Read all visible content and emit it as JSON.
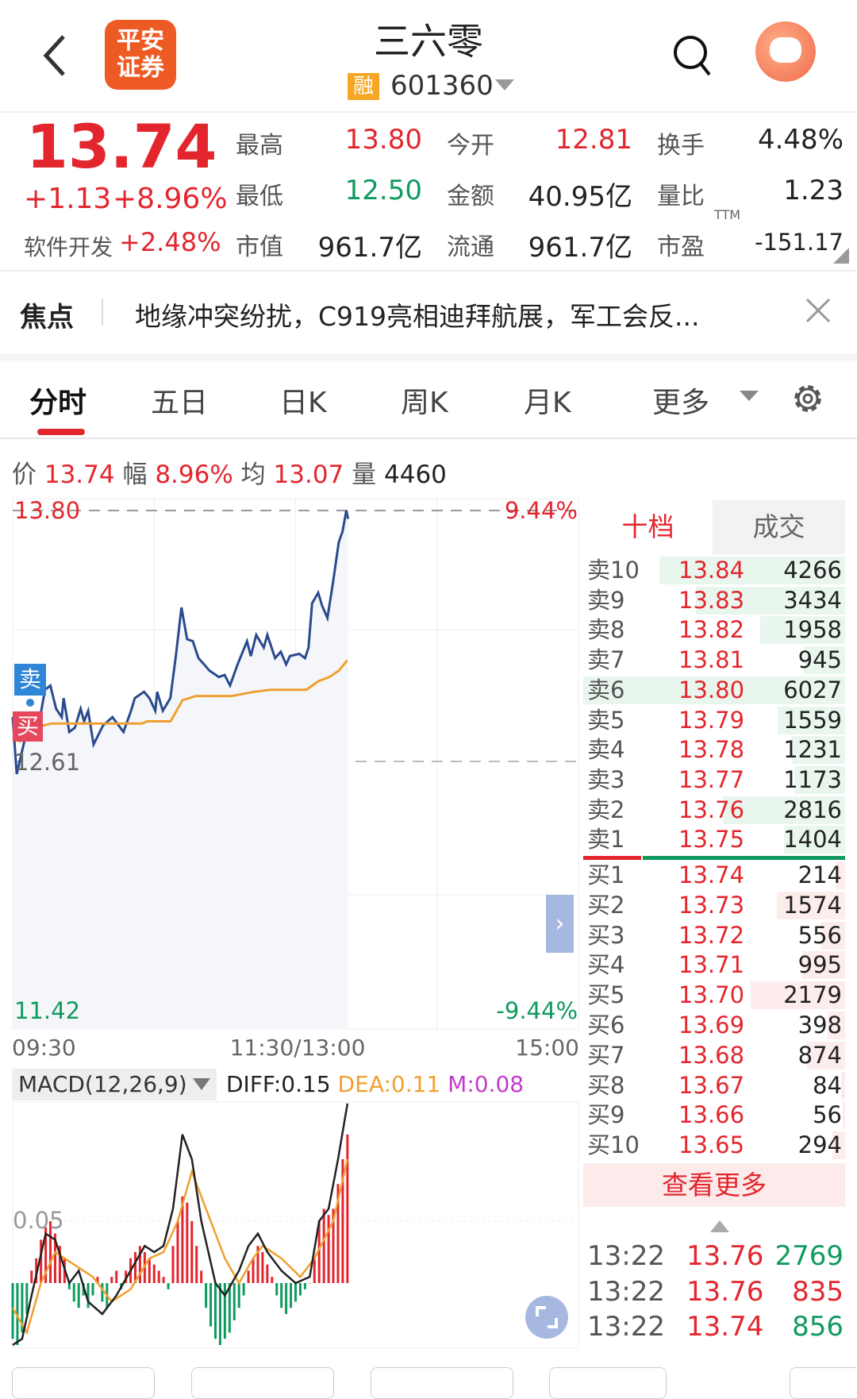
{
  "header": {
    "title": "三六零",
    "badge": "融",
    "code": "601360",
    "logo_text": "平安证券"
  },
  "quote": {
    "price": "13.74",
    "change": "+1.13",
    "change_pct": "+8.96%",
    "sector": "软件开发",
    "sector_pct": "+2.48%",
    "stats": [
      {
        "label": "最高",
        "value": "13.80",
        "color": "red"
      },
      {
        "label": "今开",
        "value": "12.81",
        "color": "red"
      },
      {
        "label": "换手",
        "value": "4.48%",
        "color": "black"
      },
      {
        "label": "最低",
        "value": "12.50",
        "color": "green"
      },
      {
        "label": "金额",
        "value": "40.95亿",
        "color": "black"
      },
      {
        "label": "量比",
        "value": "1.23",
        "color": "black"
      },
      {
        "label": "市值",
        "value": "961.7亿",
        "color": "black"
      },
      {
        "label": "流通",
        "value": "961.7亿",
        "color": "black"
      },
      {
        "label": "市盈",
        "value": "-151.17",
        "color": "black"
      }
    ],
    "pe_sup": "TTM"
  },
  "focus": {
    "label": "焦点",
    "text": "地缘冲突纷扰，C919亮相迪拜航展，军工会反..."
  },
  "tabs": [
    "分时",
    "五日",
    "日K",
    "周K",
    "月K",
    "更多"
  ],
  "info": {
    "price_label": "价",
    "price": "13.74",
    "amp_label": "幅",
    "amp": "8.96%",
    "avg_label": "均",
    "avg": "13.07",
    "vol_label": "量",
    "vol": "4460"
  },
  "chart_data": {
    "type": "line",
    "y_top": "13.80",
    "y_mid": "12.61",
    "y_bottom": "11.42",
    "pct_top": "9.44%",
    "pct_bottom": "-9.44%",
    "ylim": [
      11.42,
      13.8
    ],
    "prev_close": 12.61,
    "x_labels": [
      "09:30",
      "11:30/13:00",
      "15:00"
    ],
    "x_range_minutes": [
      0,
      240
    ],
    "price": [
      [
        0,
        12.82
      ],
      [
        1.7,
        12.55
      ],
      [
        7.3,
        12.82
      ],
      [
        9.7,
        12.76
      ],
      [
        11.3,
        12.8
      ],
      [
        13.7,
        12.95
      ],
      [
        16,
        12.97
      ],
      [
        18.4,
        12.86
      ],
      [
        20.8,
        12.82
      ],
      [
        21.6,
        12.91
      ],
      [
        24,
        12.75
      ],
      [
        26.4,
        12.77
      ],
      [
        28.8,
        12.86
      ],
      [
        30.3,
        12.8
      ],
      [
        32,
        12.85
      ],
      [
        34.3,
        12.69
      ],
      [
        38.3,
        12.78
      ],
      [
        42.3,
        12.82
      ],
      [
        47,
        12.75
      ],
      [
        50.2,
        12.85
      ],
      [
        51.8,
        12.91
      ],
      [
        55.7,
        12.94
      ],
      [
        58,
        12.91
      ],
      [
        60.5,
        12.85
      ],
      [
        61.3,
        12.94
      ],
      [
        63.7,
        12.85
      ],
      [
        66.9,
        12.91
      ],
      [
        69.2,
        13.11
      ],
      [
        71.6,
        13.34
      ],
      [
        74,
        13.19
      ],
      [
        76.4,
        13.18
      ],
      [
        78.8,
        13.1
      ],
      [
        81.2,
        13.07
      ],
      [
        83.5,
        13.04
      ],
      [
        87.5,
        13.01
      ],
      [
        89.9,
        13.02
      ],
      [
        92.2,
        12.97
      ],
      [
        95.4,
        13.07
      ],
      [
        99.4,
        13.18
      ],
      [
        101,
        13.11
      ],
      [
        103.3,
        13.21
      ],
      [
        106.5,
        13.15
      ],
      [
        108,
        13.21
      ],
      [
        111.3,
        13.1
      ],
      [
        113.7,
        13.13
      ],
      [
        116,
        13.07
      ],
      [
        117.6,
        13.11
      ],
      [
        121.6,
        13.12
      ],
      [
        124,
        13.1
      ],
      [
        125.5,
        13.15
      ],
      [
        127,
        13.36
      ],
      [
        129.6,
        13.41
      ],
      [
        131.2,
        13.35
      ],
      [
        133.5,
        13.29
      ],
      [
        135.9,
        13.46
      ],
      [
        138.3,
        13.65
      ],
      [
        139.9,
        13.7
      ],
      [
        141.5,
        13.8
      ],
      [
        142.3,
        13.76
      ]
    ],
    "average": [
      [
        3,
        12.7
      ],
      [
        6,
        12.76
      ],
      [
        16.5,
        12.79
      ],
      [
        55,
        12.79
      ],
      [
        57,
        12.8
      ],
      [
        67,
        12.8
      ],
      [
        72,
        12.9
      ],
      [
        77.6,
        12.92
      ],
      [
        92.9,
        12.92
      ],
      [
        102.4,
        12.94
      ],
      [
        109.5,
        12.95
      ],
      [
        124.6,
        12.95
      ],
      [
        129.6,
        12.99
      ],
      [
        134.3,
        13.01
      ],
      [
        138.3,
        13.04
      ],
      [
        141.9,
        13.09
      ]
    ],
    "series": [
      {
        "name": "价",
        "color": "#2a4a8f"
      },
      {
        "name": "均",
        "color": "#f0a030"
      }
    ],
    "trade_marks": [
      "卖",
      "买"
    ]
  },
  "macd": {
    "title": "MACD(12,26,9)",
    "diff": "DIFF:0.15",
    "dea": "DEA:0.11",
    "m": "M:0.08",
    "axis_label": "0.05",
    "histogram": [
      -0.045,
      -0.05,
      -0.04,
      -0.025,
      0.01,
      0.02,
      0.035,
      0.045,
      0.05,
      0.04,
      0.03,
      0.02,
      -0.005,
      -0.015,
      -0.02,
      -0.01,
      -0.02,
      -0.01,
      0.005,
      -0.015,
      -0.02,
      0.005,
      0.01,
      -0.005,
      0.01,
      0.02,
      0.025,
      0.03,
      0.025,
      0.02,
      0.015,
      0.01,
      0.005,
      -0.005,
      0.03,
      0.05,
      0.07,
      0.065,
      0.05,
      0.03,
      0.01,
      -0.02,
      -0.035,
      -0.045,
      -0.05,
      -0.045,
      -0.04,
      -0.03,
      -0.02,
      -0.01,
      0.01,
      0.02,
      0.03,
      0.025,
      0.015,
      0.005,
      -0.01,
      -0.02,
      -0.025,
      -0.02,
      -0.015,
      -0.01,
      -0.005,
      0.0,
      0.02,
      0.05,
      0.06,
      0.055,
      0.06,
      0.08,
      0.1,
      0.12
    ],
    "diff_line": [
      [
        0,
        -0.05
      ],
      [
        4,
        -0.045
      ],
      [
        8,
        -0.01
      ],
      [
        14,
        0.04
      ],
      [
        18,
        0.035
      ],
      [
        24,
        0.0
      ],
      [
        28,
        0.01
      ],
      [
        32,
        -0.015
      ],
      [
        38,
        -0.025
      ],
      [
        44,
        -0.01
      ],
      [
        50,
        0.01
      ],
      [
        56,
        0.03
      ],
      [
        60,
        0.025
      ],
      [
        64,
        0.03
      ],
      [
        68,
        0.06
      ],
      [
        72,
        0.12
      ],
      [
        76,
        0.1
      ],
      [
        80,
        0.05
      ],
      [
        86,
        0.0
      ],
      [
        90,
        -0.01
      ],
      [
        96,
        0.01
      ],
      [
        100,
        0.03
      ],
      [
        104,
        0.04
      ],
      [
        108,
        0.025
      ],
      [
        114,
        0.01
      ],
      [
        120,
        0.0
      ],
      [
        126,
        0.005
      ],
      [
        130,
        0.05
      ],
      [
        134,
        0.06
      ],
      [
        138,
        0.1
      ],
      [
        142,
        0.145
      ]
    ],
    "dea_line": [
      [
        0,
        -0.02
      ],
      [
        6,
        -0.04
      ],
      [
        12,
        0.0
      ],
      [
        18,
        0.025
      ],
      [
        26,
        0.015
      ],
      [
        34,
        0.005
      ],
      [
        42,
        -0.015
      ],
      [
        50,
        -0.005
      ],
      [
        58,
        0.02
      ],
      [
        64,
        0.025
      ],
      [
        70,
        0.05
      ],
      [
        76,
        0.09
      ],
      [
        82,
        0.06
      ],
      [
        90,
        0.02
      ],
      [
        96,
        0.0
      ],
      [
        102,
        0.02
      ],
      [
        106,
        0.03
      ],
      [
        114,
        0.02
      ],
      [
        122,
        0.005
      ],
      [
        128,
        0.02
      ],
      [
        136,
        0.05
      ],
      [
        142,
        0.1
      ]
    ]
  },
  "orderbook": {
    "tabs": [
      "十档",
      "成交"
    ],
    "asks": [
      {
        "k": "卖10",
        "p": "13.84",
        "v": "4266"
      },
      {
        "k": "卖9",
        "p": "13.83",
        "v": "3434"
      },
      {
        "k": "卖8",
        "p": "13.82",
        "v": "1958"
      },
      {
        "k": "卖7",
        "p": "13.81",
        "v": "945"
      },
      {
        "k": "卖6",
        "p": "13.80",
        "v": "6027"
      },
      {
        "k": "卖5",
        "p": "13.79",
        "v": "1559"
      },
      {
        "k": "卖4",
        "p": "13.78",
        "v": "1231"
      },
      {
        "k": "卖3",
        "p": "13.77",
        "v": "1173"
      },
      {
        "k": "卖2",
        "p": "13.76",
        "v": "2816"
      },
      {
        "k": "卖1",
        "p": "13.75",
        "v": "1404"
      }
    ],
    "bids": [
      {
        "k": "买1",
        "p": "13.74",
        "v": "214"
      },
      {
        "k": "买2",
        "p": "13.73",
        "v": "1574"
      },
      {
        "k": "买3",
        "p": "13.72",
        "v": "556"
      },
      {
        "k": "买4",
        "p": "13.71",
        "v": "995"
      },
      {
        "k": "买5",
        "p": "13.70",
        "v": "2179"
      },
      {
        "k": "买6",
        "p": "13.69",
        "v": "398"
      },
      {
        "k": "买7",
        "p": "13.68",
        "v": "874"
      },
      {
        "k": "买8",
        "p": "13.67",
        "v": "84"
      },
      {
        "k": "买9",
        "p": "13.66",
        "v": "56"
      },
      {
        "k": "买10",
        "p": "13.65",
        "v": "294"
      }
    ],
    "more": "查看更多",
    "ticks": [
      {
        "t": "13:22",
        "p": "13.76",
        "v": "2769",
        "c": "green"
      },
      {
        "t": "13:22",
        "p": "13.76",
        "v": "835",
        "c": "red"
      },
      {
        "t": "13:22",
        "p": "13.74",
        "v": "856",
        "c": "green"
      }
    ]
  },
  "colors": {
    "red": "#e3262e",
    "green": "#0f9a5f",
    "line": "#2a4a8f",
    "avg": "#f0a030",
    "orange": "#ee5a24"
  }
}
